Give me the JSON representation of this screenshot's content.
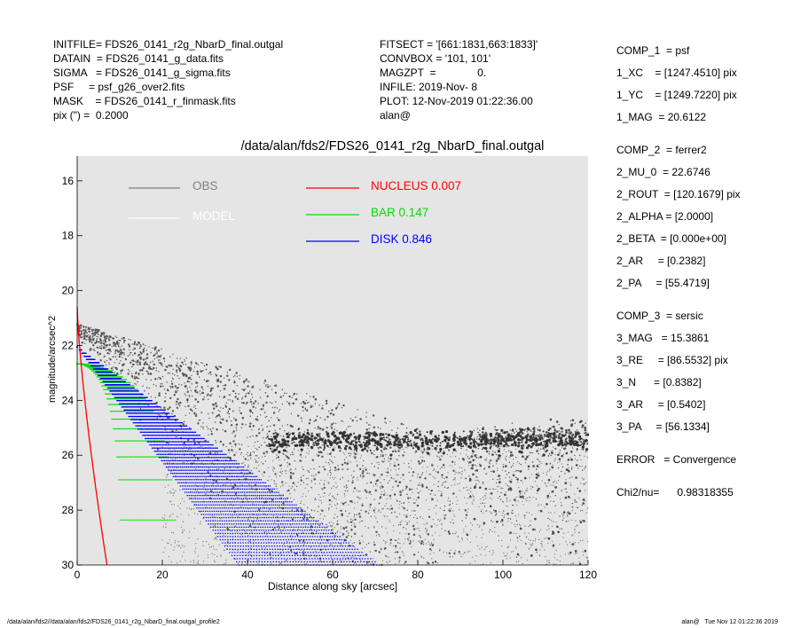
{
  "header_left": [
    "INITFILE= FDS26_0141_r2g_NbarD_final.outgal",
    "DATAIN  = FDS26_0141_g_data.fits",
    "SIGMA   = FDS26_0141_g_sigma.fits",
    "PSF     = psf_g26_over2.fits",
    "MASK    = FDS26_0141_r_finmask.fits",
    "pix (\") =  0.2000"
  ],
  "header_mid": [
    "FITSECT = '[661:1831,663:1833]'",
    "CONVBOX = '101, 101'",
    "MAGZPT  =              0.",
    "INFILE: 2019-Nov- 8",
    "PLOT: 12-Nov-2019 01:22:36.00",
    "alan@"
  ],
  "side_params": [
    [
      "COMP_1  = psf",
      "1_XC    = [1247.4510] pix",
      "1_YC    = [1249.7220] pix",
      "1_MAG  = 20.6122"
    ],
    [
      "COMP_2  = ferrer2",
      "2_MU_0  = 22.6746",
      "2_ROUT  = [120.1679] pix",
      "2_ALPHA = [2.0000]",
      "2_BETA  = [0.000e+00]",
      "2_AR     = [0.2382]",
      "2_PA     = [55.4719]"
    ],
    [
      "COMP_3  = sersic",
      "3_MAG   = 15.3861",
      "3_RE     = [86.5532] pix",
      "3_N      = [0.8382]",
      "3_AR     = [0.5402]",
      "3_PA     = [56.1334]"
    ],
    [
      "ERROR   = Convergence"
    ],
    [
      "Chi2/nu=      0.98318355"
    ]
  ],
  "footer": {
    "left": "/data/alan/fds2//data/alan/fds2/FDS26_0141_r2g_NbarD_final.outgal_profile2",
    "right": "alan@   Tue Nov 12 01:22:36 2019"
  },
  "chart_data": {
    "type": "scatter",
    "title": "/data/alan/fds2/FDS26_0141_r2g_NbarD_final.outgal",
    "xlabel": "Distance along sky [arcsec]",
    "ylabel": "magnitude/arcsec^2",
    "xlim": [
      0,
      120
    ],
    "ylim": [
      30,
      15.1
    ],
    "y_inverted": true,
    "xticks": [
      0,
      20,
      40,
      60,
      80,
      100,
      120
    ],
    "yticks": [
      16,
      18,
      20,
      22,
      24,
      26,
      28,
      30
    ],
    "background": "#e5e5e5",
    "legend": [
      {
        "name": "OBS",
        "value": "",
        "color": "#7f7f7f"
      },
      {
        "name": "MODEL",
        "value": "",
        "color": "#ffffff"
      },
      {
        "name": "NUCLEUS",
        "value": "0.007",
        "color": "#ff0000"
      },
      {
        "name": "BAR",
        "value": "0.147",
        "color": "#00e000"
      },
      {
        "name": "DISK",
        "value": "0.846",
        "color": "#0000ff"
      }
    ],
    "series": {
      "nucleus": {
        "center_mag": 20.6,
        "x_reach": 7
      },
      "bar": {
        "mu_0": 22.67,
        "r_out_min": 10.5,
        "r_out_max": 24.0
      },
      "disk": {
        "mu_center": 22.05,
        "slope_max": 0.2,
        "slope_min": 0.1125,
        "x_end_max": 71,
        "x_end_min": 38
      },
      "obs_sky_level": 25.5
    }
  }
}
